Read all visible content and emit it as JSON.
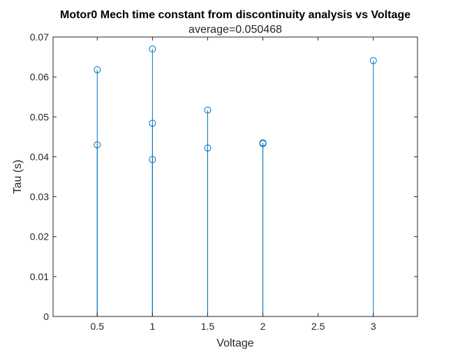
{
  "chart_data": {
    "type": "stem",
    "title": "Motor0 Mech time constant from discontinuity analysis vs Voltage",
    "subtitle": "average=0.050468",
    "xlabel": "Voltage",
    "ylabel": "Tau (s)",
    "xlim": [
      0.1,
      3.4
    ],
    "ylim": [
      0,
      0.07
    ],
    "x_ticks": [
      0.5,
      1,
      1.5,
      2,
      2.5,
      3
    ],
    "x_tick_labels": [
      "0.5",
      "1",
      "1.5",
      "2",
      "2.5",
      "3"
    ],
    "y_ticks": [
      0,
      0.01,
      0.02,
      0.03,
      0.04,
      0.05,
      0.06,
      0.07
    ],
    "y_tick_labels": [
      "0",
      "0.01",
      "0.02",
      "0.03",
      "0.04",
      "0.05",
      "0.06",
      "0.07"
    ],
    "grid": false,
    "series_color": "#0072BD",
    "points": [
      {
        "x": 0.5,
        "y": 0.0618
      },
      {
        "x": 0.5,
        "y": 0.043
      },
      {
        "x": 1,
        "y": 0.067
      },
      {
        "x": 1,
        "y": 0.0484
      },
      {
        "x": 1,
        "y": 0.0393
      },
      {
        "x": 1.5,
        "y": 0.0517
      },
      {
        "x": 1.5,
        "y": 0.0422
      },
      {
        "x": 2,
        "y": 0.0435
      },
      {
        "x": 2,
        "y": 0.0433
      },
      {
        "x": 3,
        "y": 0.0641
      }
    ]
  }
}
